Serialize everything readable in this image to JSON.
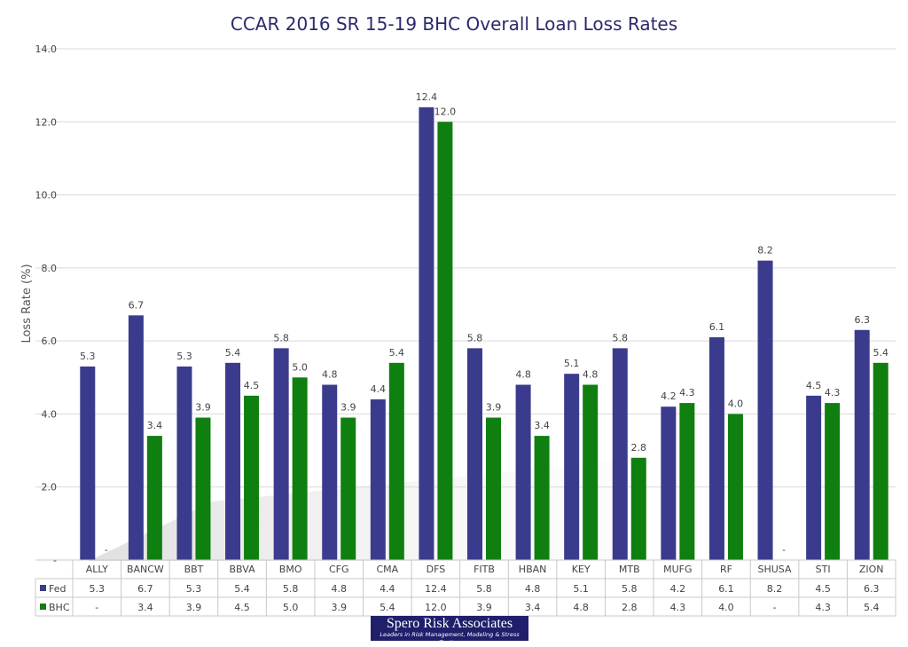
{
  "chart_data": {
    "type": "bar",
    "title": "CCAR 2016 SR 15-19 BHC Overall Loan Loss Rates",
    "ylabel": "Loss Rate (%)",
    "xlabel": "",
    "ylim": [
      0,
      14
    ],
    "yticks": [
      "-",
      "2.0",
      "4.0",
      "6.0",
      "8.0",
      "10.0",
      "12.0",
      "14.0"
    ],
    "grid": true,
    "legend": "data table",
    "categories": [
      "ALLY",
      "BANCW",
      "BBT",
      "BBVA",
      "BMO",
      "CFG",
      "CMA",
      "DFS",
      "FITB",
      "HBAN",
      "KEY",
      "MTB",
      "MUFG",
      "RF",
      "SHUSA",
      "STI",
      "ZION"
    ],
    "series": [
      {
        "name": "Fed",
        "color": "#3b3b8e",
        "values": [
          5.3,
          6.7,
          5.3,
          5.4,
          5.8,
          4.8,
          4.4,
          12.4,
          5.8,
          4.8,
          5.1,
          5.8,
          4.2,
          6.1,
          8.2,
          4.5,
          6.3
        ],
        "labels": [
          "5.3",
          "6.7",
          "5.3",
          "5.4",
          "5.8",
          "4.8",
          "4.4",
          "12.4",
          "5.8",
          "4.8",
          "5.1",
          "5.8",
          "4.2",
          "6.1",
          "8.2",
          "4.5",
          "6.3"
        ]
      },
      {
        "name": "BHC",
        "color": "#0f7f0f",
        "values": [
          null,
          3.4,
          3.9,
          4.5,
          5.0,
          3.9,
          5.4,
          12.0,
          3.9,
          3.4,
          4.8,
          2.8,
          4.3,
          4.0,
          null,
          4.3,
          5.4
        ],
        "labels": [
          "-",
          "3.4",
          "3.9",
          "4.5",
          "5.0",
          "3.9",
          "5.4",
          "12.0",
          "3.9",
          "3.4",
          "4.8",
          "2.8",
          "4.3",
          "4.0",
          "-",
          "4.3",
          "5.4"
        ]
      }
    ]
  },
  "watermark": {
    "name": "Spero Risk Associates",
    "tagline": "Leaders in Risk Management, Modeling & Stress Testing"
  }
}
